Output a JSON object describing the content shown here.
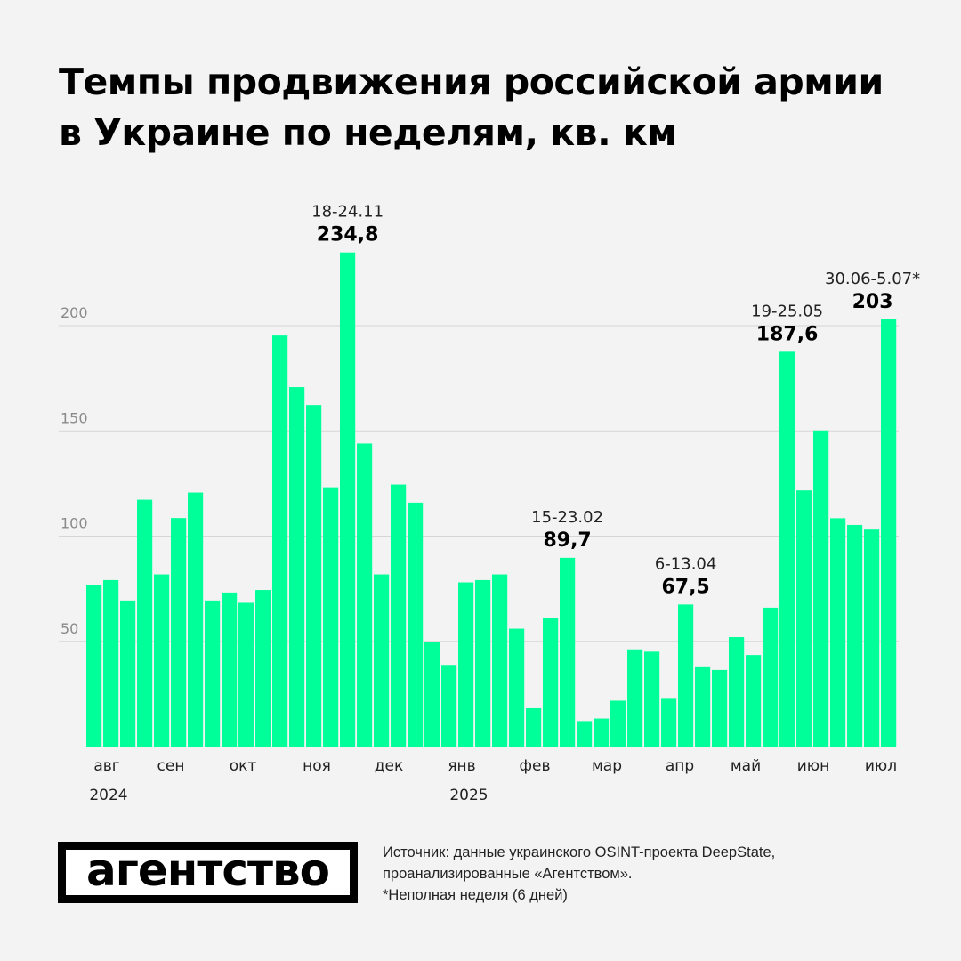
{
  "title": "Темпы продвижения российской армии в Украине по неделям, кв. км",
  "chart_data": {
    "type": "bar",
    "title": "Темпы продвижения российской армии в Украине по неделям, кв. км",
    "color": "#00ff99",
    "ylim": [
      0,
      240
    ],
    "yticks": [
      50,
      100,
      150,
      200
    ],
    "grid": true,
    "values": [
      76.8,
      79.1,
      69.4,
      117.3,
      81.8,
      108.6,
      120.7,
      69.4,
      73.2,
      68.3,
      74.4,
      195.3,
      170.8,
      162.3,
      123.2,
      234.8,
      144.0,
      81.8,
      124.5,
      115.9,
      49.8,
      38.8,
      78.0,
      79.1,
      81.8,
      56.0,
      18.2,
      61.0,
      89.7,
      12.1,
      13.3,
      21.8,
      46.2,
      45.1,
      23.1,
      67.5,
      37.7,
      36.4,
      52.0,
      43.5,
      66.0,
      187.6,
      121.7,
      150.2,
      108.5,
      105.3,
      103.1,
      203
    ],
    "months": [
      "авг",
      "сен",
      "окт",
      "ноя",
      "дек",
      "янв",
      "фев",
      "мар",
      "апр",
      "май",
      "июн",
      "июл"
    ],
    "years": [
      "2024",
      "2025"
    ],
    "annotations": [
      {
        "bar": 16,
        "date": "18-24.11",
        "value": "234,8"
      },
      {
        "bar": 29,
        "date": "15-23.02",
        "value": "89,7"
      },
      {
        "bar": 36,
        "date": "6-13.04",
        "value": "67,5"
      },
      {
        "bar": 42,
        "date": "19-25.05",
        "value": "187,6"
      },
      {
        "bar": 48,
        "date": "30.06-5.07*",
        "value": "203"
      }
    ]
  },
  "logo": "агентство",
  "source": {
    "line1": "Источник: данные украинского OSINT-проекта DeepState,",
    "line2": "проанализированные «Агентством».",
    "line3": "*Неполная неделя (6 дней)"
  }
}
